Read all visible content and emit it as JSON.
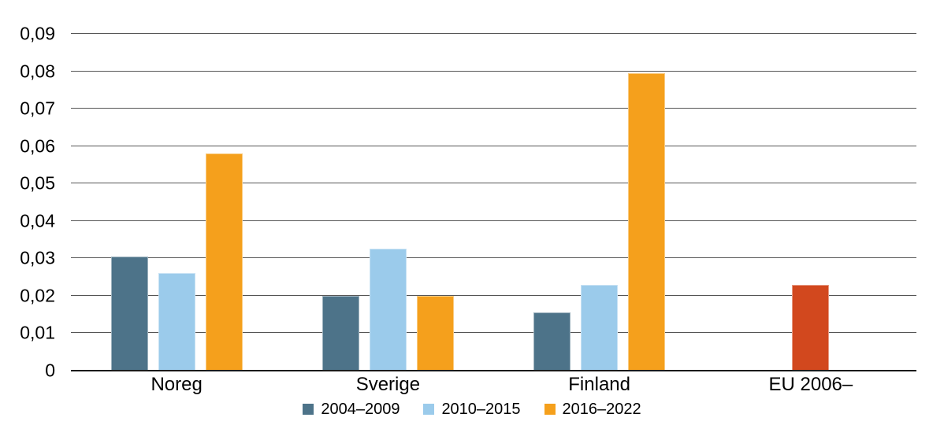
{
  "chart_data": {
    "type": "bar",
    "categories": [
      "Noreg",
      "Sverige",
      "Finland",
      "EU 2006–"
    ],
    "series": [
      {
        "name": "2004–2009",
        "color": "#4D7389",
        "values": [
          0.0305,
          0.02,
          0.0155,
          null
        ]
      },
      {
        "name": "2010–2015",
        "color": "#9BCBEB",
        "values": [
          0.026,
          0.0325,
          0.023,
          null
        ]
      },
      {
        "name": "2016–2022",
        "color": "#F5A01C",
        "values": [
          0.058,
          0.02,
          0.0795,
          null
        ]
      }
    ],
    "special_bars": [
      {
        "category": "EU 2006–",
        "value": 0.023,
        "color": "#D2481E"
      }
    ],
    "title": "",
    "xlabel": "",
    "ylabel": "",
    "ylim": [
      0,
      0.09
    ],
    "ytick_step": 0.01,
    "ytick_labels": [
      "0",
      "0,01",
      "0,02",
      "0,03",
      "0,04",
      "0,05",
      "0,06",
      "0,07",
      "0,08",
      "0,09"
    ],
    "decimal_separator": ",",
    "grid": true,
    "grid_color": "#555555",
    "axis_color": "#1a1a1a",
    "background_color": "#ffffff",
    "legend_position": "bottom"
  }
}
